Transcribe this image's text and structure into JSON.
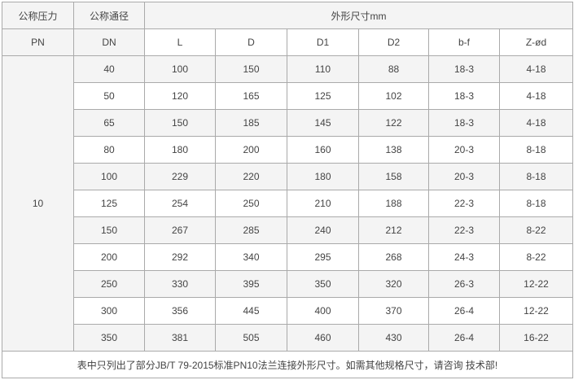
{
  "header": {
    "pn_cn": "公称压力",
    "pn": "PN",
    "dn_cn": "公称通径",
    "dn": "DN",
    "dims_title": "外形尺寸mm",
    "columns": [
      "L",
      "D",
      "D1",
      "D2",
      "b-f",
      "Z-ød"
    ]
  },
  "pn_value": "10",
  "rows": [
    [
      "40",
      "100",
      "150",
      "110",
      "88",
      "18-3",
      "4-18"
    ],
    [
      "50",
      "120",
      "165",
      "125",
      "102",
      "18-3",
      "4-18"
    ],
    [
      "65",
      "150",
      "185",
      "145",
      "122",
      "18-3",
      "4-18"
    ],
    [
      "80",
      "180",
      "200",
      "160",
      "138",
      "20-3",
      "8-18"
    ],
    [
      "100",
      "229",
      "220",
      "180",
      "158",
      "20-3",
      "8-18"
    ],
    [
      "125",
      "254",
      "250",
      "210",
      "188",
      "22-3",
      "8-18"
    ],
    [
      "150",
      "267",
      "285",
      "240",
      "212",
      "22-3",
      "8-22"
    ],
    [
      "200",
      "292",
      "340",
      "295",
      "268",
      "24-3",
      "8-22"
    ],
    [
      "250",
      "330",
      "395",
      "350",
      "320",
      "26-3",
      "12-22"
    ],
    [
      "300",
      "356",
      "445",
      "400",
      "370",
      "26-4",
      "12-22"
    ],
    [
      "350",
      "381",
      "505",
      "460",
      "430",
      "26-4",
      "16-22"
    ]
  ],
  "footer": "表中只列出了部分JB/T 79-2015标准PN10法兰连接外形尺寸。如需其他规格尺寸，请咨询 技术部!"
}
